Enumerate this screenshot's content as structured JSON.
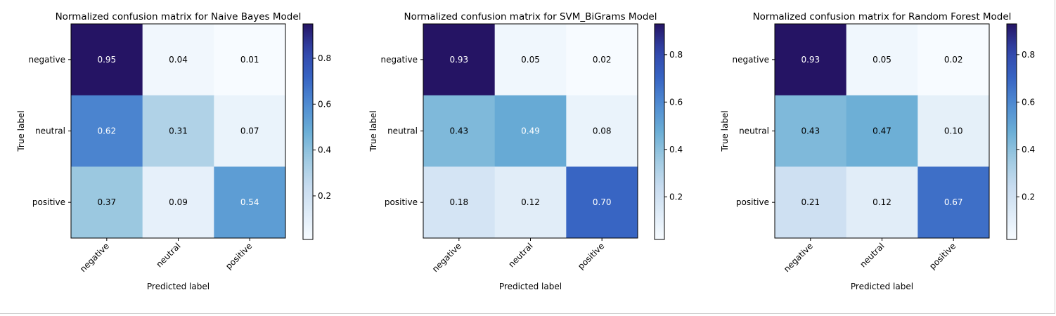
{
  "chart_data": [
    {
      "type": "heatmap",
      "title": "Normalized confusion matrix for Naive Bayes Model",
      "xlabel": "Predicted label",
      "ylabel": "True label",
      "x_categories": [
        "negative",
        "neutral",
        "positive"
      ],
      "y_categories": [
        "negative",
        "neutral",
        "positive"
      ],
      "values": [
        [
          0.95,
          0.04,
          0.01
        ],
        [
          0.62,
          0.31,
          0.07
        ],
        [
          0.37,
          0.09,
          0.54
        ]
      ],
      "value_labels": [
        [
          "0.95",
          "0.04",
          "0.01"
        ],
        [
          "0.62",
          "0.31",
          "0.07"
        ],
        [
          "0.37",
          "0.09",
          "0.54"
        ]
      ],
      "colormap": "Blues",
      "colorbar": {
        "range": [
          0.01,
          0.95
        ],
        "ticks": [
          0.2,
          0.4,
          0.6,
          0.8
        ],
        "tick_labels": [
          "0.2",
          "0.4",
          "0.6",
          "0.8"
        ]
      }
    },
    {
      "type": "heatmap",
      "title": "Normalized confusion matrix for SVM_BiGrams Model",
      "xlabel": "Predicted label",
      "ylabel": "True label",
      "x_categories": [
        "negative",
        "neutral",
        "positive"
      ],
      "y_categories": [
        "negative",
        "neutral",
        "positive"
      ],
      "values": [
        [
          0.93,
          0.05,
          0.02
        ],
        [
          0.43,
          0.49,
          0.08
        ],
        [
          0.18,
          0.12,
          0.7
        ]
      ],
      "value_labels": [
        [
          "0.93",
          "0.05",
          "0.02"
        ],
        [
          "0.43",
          "0.49",
          "0.08"
        ],
        [
          "0.18",
          "0.12",
          "0.70"
        ]
      ],
      "colormap": "Blues",
      "colorbar": {
        "range": [
          0.02,
          0.93
        ],
        "ticks": [
          0.2,
          0.4,
          0.6,
          0.8
        ],
        "tick_labels": [
          "0.2",
          "0.4",
          "0.6",
          "0.8"
        ]
      }
    },
    {
      "type": "heatmap",
      "title": "Normalized confusion matrix for Random Forest Model",
      "xlabel": "Predicted label",
      "ylabel": "True label",
      "x_categories": [
        "negative",
        "neutral",
        "positive"
      ],
      "y_categories": [
        "negative",
        "neutral",
        "positive"
      ],
      "values": [
        [
          0.93,
          0.05,
          0.02
        ],
        [
          0.43,
          0.47,
          0.1
        ],
        [
          0.21,
          0.12,
          0.67
        ]
      ],
      "value_labels": [
        [
          "0.93",
          "0.05",
          "0.02"
        ],
        [
          "0.43",
          "0.47",
          "0.10"
        ],
        [
          "0.21",
          "0.12",
          "0.67"
        ]
      ],
      "colormap": "Blues",
      "colorbar": {
        "range": [
          0.02,
          0.93
        ],
        "ticks": [
          0.2,
          0.4,
          0.6,
          0.8
        ],
        "tick_labels": [
          "0.2",
          "0.4",
          "0.6",
          "0.8"
        ]
      }
    }
  ]
}
